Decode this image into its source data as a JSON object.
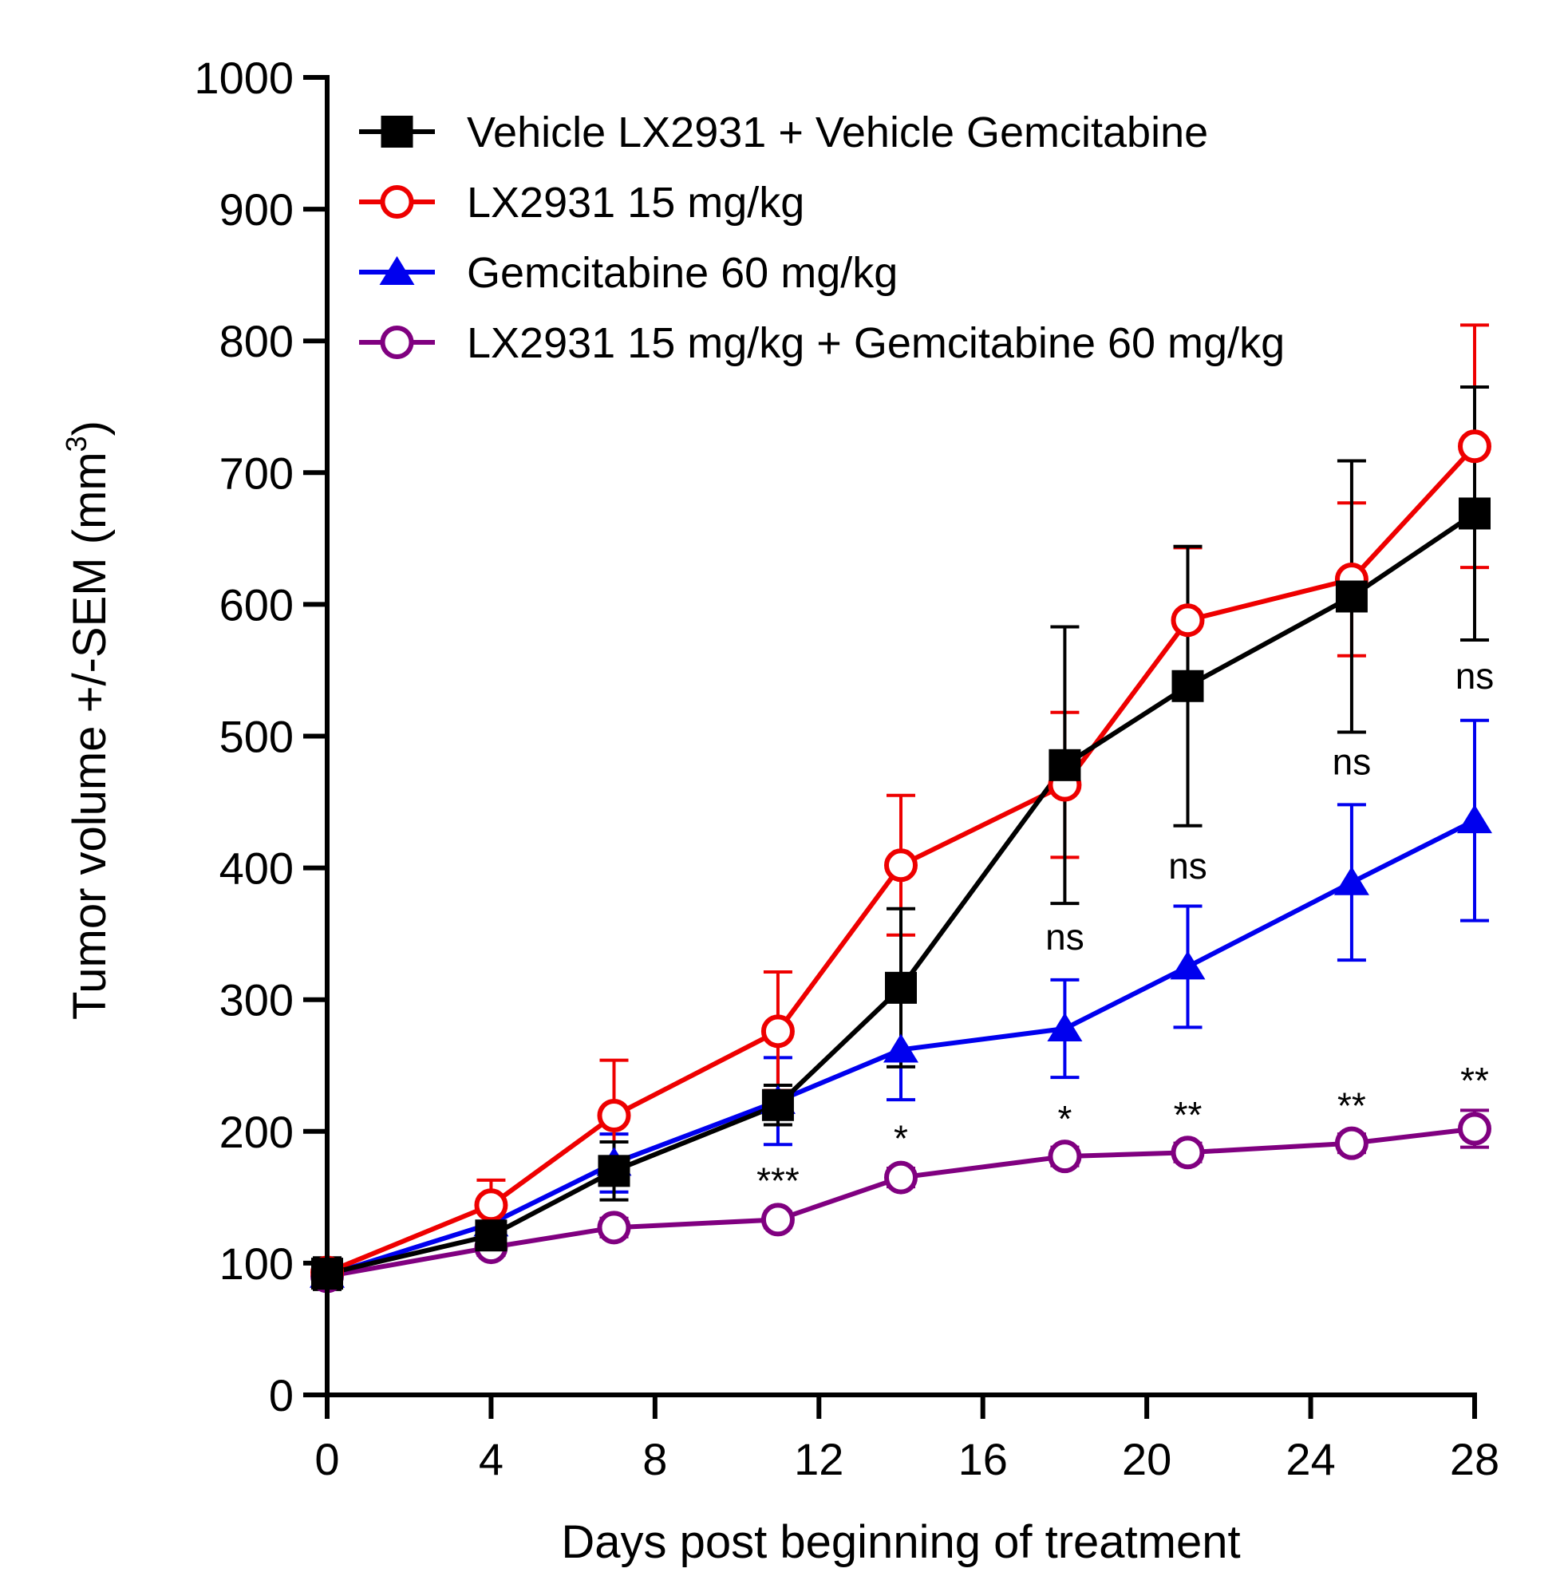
{
  "chart_data": {
    "type": "line",
    "title": "",
    "xlabel": "Days post beginning of treatment",
    "ylabel": "Tumor volume +/-SEM (mm",
    "ylabel_superscript": "3",
    "ylabel_close": ")",
    "xlim": [
      0,
      28
    ],
    "ylim": [
      0,
      1000
    ],
    "xticks": [
      0,
      4,
      8,
      12,
      16,
      20,
      24,
      28
    ],
    "xtick_labels": [
      "0",
      "4",
      "8",
      "12",
      "16",
      "20",
      "24",
      "28"
    ],
    "yticks": [
      0,
      100,
      200,
      300,
      400,
      500,
      600,
      700,
      800,
      900,
      1000
    ],
    "ytick_labels": [
      "0",
      "100",
      "200",
      "300",
      "400",
      "500",
      "600",
      "700",
      "800",
      "900",
      "1000"
    ],
    "grid": false,
    "legend_position": "top-left",
    "x": [
      0,
      4,
      7,
      11,
      14,
      18,
      21,
      25,
      28
    ],
    "series": [
      {
        "name": "Vehicle LX2931 + Vehicle Gemcitabine",
        "color": "#000000",
        "marker": "square",
        "filled": true,
        "values": [
          92,
          121,
          170,
          220,
          309,
          478,
          538,
          606,
          669
        ],
        "err": [
          12,
          10,
          22,
          15,
          60,
          105,
          106,
          103,
          96
        ]
      },
      {
        "name": "LX2931 15 mg/kg",
        "color": "#ee0000",
        "marker": "circle",
        "filled": false,
        "values": [
          93,
          144,
          212,
          276,
          402,
          463,
          588,
          619,
          720
        ],
        "err": [
          10,
          19,
          42,
          45,
          53,
          55,
          55,
          58,
          92
        ]
      },
      {
        "name": "Gemcitabine 60 mg/kg",
        "color": "#0000ee",
        "marker": "triangle",
        "filled": true,
        "values": [
          91,
          130,
          176,
          223,
          262,
          278,
          325,
          389,
          436
        ],
        "err": [
          8,
          12,
          22,
          33,
          38,
          37,
          46,
          59,
          76
        ]
      },
      {
        "name": "LX2931 15 mg/kg + Gemcitabine 60 mg/kg",
        "color": "#800080",
        "marker": "circle",
        "filled": false,
        "values": [
          90,
          112,
          127,
          133,
          165,
          181,
          184,
          191,
          202
        ],
        "err": [
          6,
          6,
          7,
          6,
          7,
          7,
          7,
          7,
          14
        ]
      }
    ],
    "annotations": [
      {
        "text": "***",
        "x": 11,
        "y": 153
      },
      {
        "text": "*",
        "x": 14,
        "y": 185
      },
      {
        "text": "*",
        "x": 18,
        "y": 200
      },
      {
        "text": "**",
        "x": 21,
        "y": 203
      },
      {
        "text": "**",
        "x": 25,
        "y": 210
      },
      {
        "text": "**",
        "x": 28,
        "y": 229
      },
      {
        "text": "ns",
        "x": 18,
        "y": 338
      },
      {
        "text": "ns",
        "x": 21,
        "y": 392
      },
      {
        "text": "ns",
        "x": 25,
        "y": 471
      },
      {
        "text": "ns",
        "x": 28,
        "y": 536
      }
    ]
  }
}
